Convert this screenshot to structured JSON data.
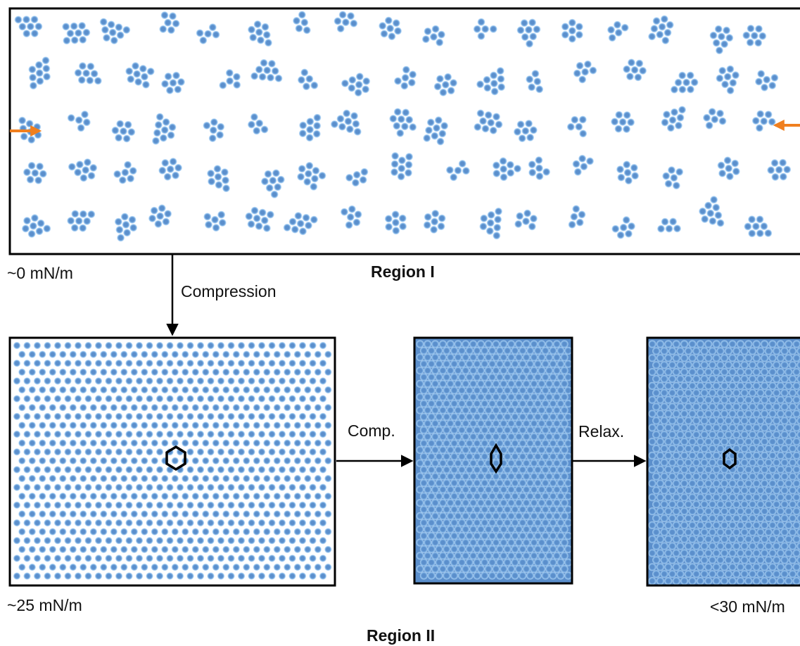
{
  "region1": {
    "title": "Region I",
    "pressure_label": "~0 mN/m",
    "arrow_color": "#f07f1e"
  },
  "region2": {
    "title": "Region II",
    "panels": [
      {
        "pressure_label": "~25 mN/m"
      },
      {
        "pressure_label": ""
      },
      {
        "pressure_label": "<30 mN/m"
      }
    ]
  },
  "transitions": {
    "compression": "Compression",
    "comp": "Comp.",
    "relax": "Relax."
  },
  "colors": {
    "particle": "#5b8fcc",
    "particle_halo": "#9ecbf2",
    "frame": "#000000"
  }
}
